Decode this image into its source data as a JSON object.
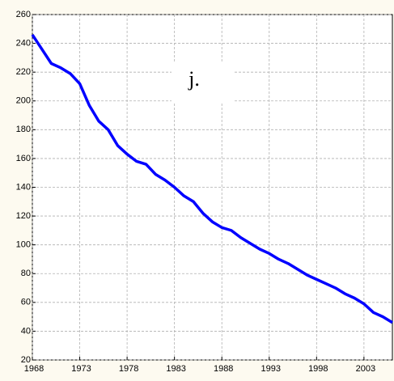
{
  "chart_data": {
    "type": "line",
    "annotation": "j.",
    "x": [
      1968,
      1969,
      1970,
      1971,
      1972,
      1973,
      1974,
      1975,
      1976,
      1977,
      1978,
      1979,
      1980,
      1981,
      1982,
      1983,
      1984,
      1985,
      1986,
      1987,
      1988,
      1989,
      1990,
      1991,
      1992,
      1993,
      1994,
      1995,
      1996,
      1997,
      1998,
      1999,
      2000,
      2001,
      2002,
      2003,
      2004,
      2005,
      2006
    ],
    "series": [
      {
        "color": "#0000ff",
        "values": [
          246,
          236,
          226,
          223,
          219,
          212,
          197,
          186,
          180,
          169,
          163,
          158,
          156,
          149,
          145,
          140,
          134,
          130,
          122,
          116,
          112,
          110,
          105,
          101,
          97,
          94,
          90,
          87,
          83,
          79,
          76,
          73,
          70,
          66,
          63,
          59,
          53,
          50,
          46
        ]
      }
    ],
    "xlim": [
      1968,
      2006
    ],
    "xticks": [
      1968,
      1973,
      1978,
      1983,
      1988,
      1993,
      1998,
      2003
    ],
    "ylim": [
      20,
      260
    ],
    "yticks": [
      20,
      40,
      60,
      80,
      100,
      120,
      140,
      160,
      180,
      200,
      220,
      240,
      260
    ],
    "grid": true
  }
}
